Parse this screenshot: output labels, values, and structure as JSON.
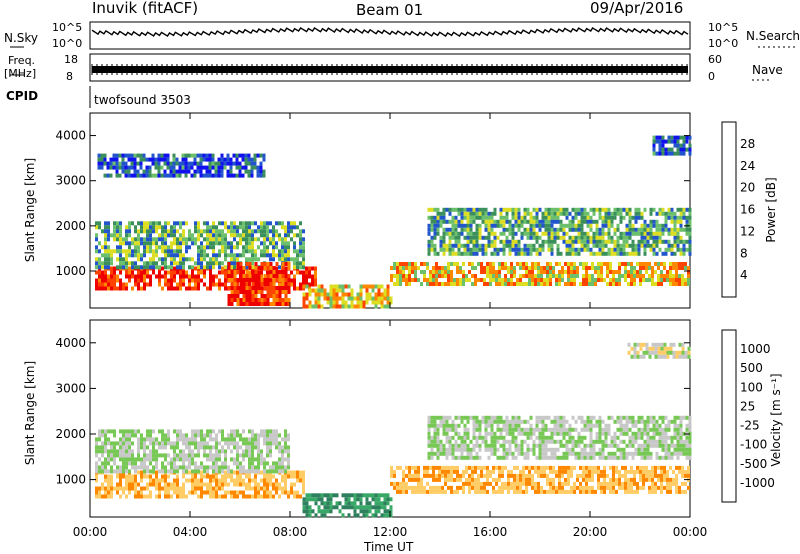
{
  "header": {
    "site": "Inuvik (fitACF)",
    "beam": "Beam 01",
    "date": "09/Apr/2016"
  },
  "top_panels": {
    "nsky_label": "N.Sky",
    "nsky_ticks": [
      "10^5",
      "10^0"
    ],
    "nsearch_label": "N.Search",
    "nsearch_ticks": [
      "10^5",
      "10^0"
    ],
    "freq_label": "Freq.",
    "freq_unit": "[MHz]",
    "freq_ticks": [
      "18",
      "8"
    ],
    "nave_label": "Nave",
    "nave_ticks": [
      "60",
      "0"
    ],
    "cpid_label": "CPID",
    "cpid_value": "twofsound 3503"
  },
  "chart_data": [
    {
      "type": "heatmap",
      "ylabel": "Slant Range [km]",
      "xlabel": "Time UT",
      "x_ticks": [
        "00:00",
        "04:00",
        "08:00",
        "12:00",
        "16:00",
        "20:00",
        "00:00"
      ],
      "x_range_hours": [
        0,
        24
      ],
      "y_ticks": [
        1000,
        2000,
        3000,
        4000
      ],
      "ylim": [
        180,
        4500
      ],
      "colorbar": {
        "label": "Power [dB]",
        "ticks": [
          "4",
          "8",
          "12",
          "16",
          "20",
          "24",
          "28"
        ],
        "colors": [
          "#1111ee",
          "#2255cc",
          "#3a8f5a",
          "#6cc06c",
          "#dddd22",
          "#ff8800",
          "#ff4400",
          "#ee0000"
        ]
      },
      "regions": [
        {
          "t0": 0.2,
          "t1": 9.0,
          "r0": 650,
          "r1": 1100,
          "value": 28
        },
        {
          "t0": 0.2,
          "t1": 8.5,
          "r0": 1100,
          "r1": 2100,
          "value": 12
        },
        {
          "t0": 5.5,
          "t1": 8.0,
          "r0": 300,
          "r1": 1200,
          "value": 28
        },
        {
          "t0": 8.5,
          "t1": 12.0,
          "r0": 200,
          "r1": 700,
          "value": 20
        },
        {
          "t0": 12.0,
          "t1": 24.0,
          "r0": 700,
          "r1": 1200,
          "value": 20
        },
        {
          "t0": 13.5,
          "t1": 24.0,
          "r0": 1400,
          "r1": 2400,
          "value": 12
        },
        {
          "t0": 0.3,
          "t1": 7.0,
          "r0": 3100,
          "r1": 3600,
          "value": 6
        },
        {
          "t0": 22.5,
          "t1": 24.0,
          "r0": 3600,
          "r1": 4000,
          "value": 6
        }
      ]
    },
    {
      "type": "heatmap",
      "ylabel": "Slant Range [km]",
      "xlabel": "Time UT",
      "x_ticks": [
        "00:00",
        "04:00",
        "08:00",
        "12:00",
        "16:00",
        "20:00",
        "00:00"
      ],
      "x_range_hours": [
        0,
        24
      ],
      "y_ticks": [
        1000,
        2000,
        3000,
        4000
      ],
      "ylim": [
        180,
        4500
      ],
      "colorbar": {
        "label": "Velocity [m s⁻¹]",
        "ticks": [
          "1000",
          "500",
          "100",
          "25",
          "-25",
          "-100",
          "-500",
          "-1000"
        ],
        "colors": [
          "#2233bb",
          "#2e7f5e",
          "#38a866",
          "#77c855",
          "#c8c8c8",
          "#ffcc66",
          "#ff8800",
          "#ff5500",
          "#ee0000"
        ]
      },
      "regions": [
        {
          "t0": 0.2,
          "t1": 8.5,
          "r0": 600,
          "r1": 1200,
          "value": -250
        },
        {
          "t0": 0.2,
          "t1": 8.0,
          "r0": 1200,
          "r1": 2100,
          "value": 0
        },
        {
          "t0": 8.5,
          "t1": 12.0,
          "r0": 200,
          "r1": 700,
          "value": 300
        },
        {
          "t0": 12.0,
          "t1": 24.0,
          "r0": 700,
          "r1": 1300,
          "value": -250
        },
        {
          "t0": 13.5,
          "t1": 24.0,
          "r0": 1500,
          "r1": 2400,
          "value": 0
        },
        {
          "t0": 21.5,
          "t1": 24.0,
          "r0": 3700,
          "r1": 4000,
          "value": -40
        }
      ]
    }
  ]
}
